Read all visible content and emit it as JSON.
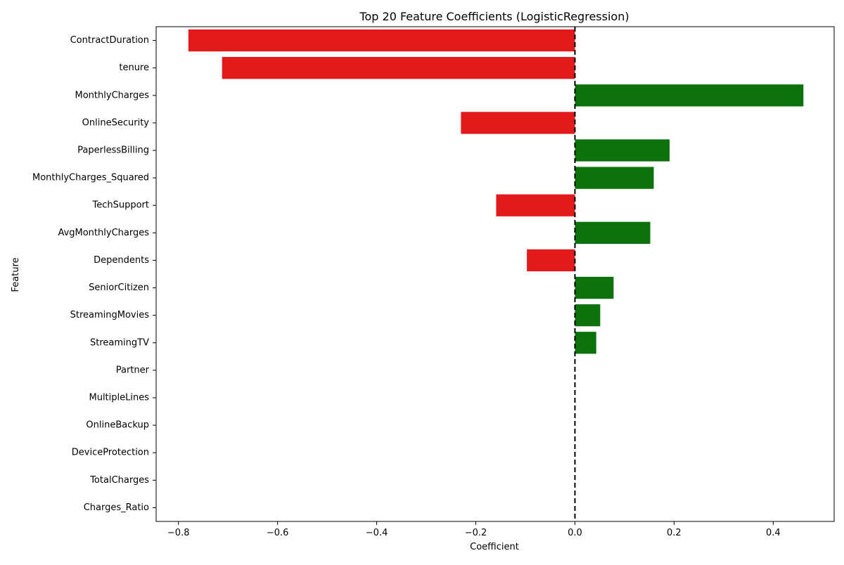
{
  "chart_data": {
    "type": "bar",
    "orientation": "horizontal",
    "title": "Top 20 Feature Coefficients (LogisticRegression)",
    "xlabel": "Coefficient",
    "ylabel": "Feature",
    "categories": [
      "ContractDuration",
      "tenure",
      "MonthlyCharges",
      "OnlineSecurity",
      "PaperlessBilling",
      "MonthlyCharges_Squared",
      "TechSupport",
      "AvgMonthlyCharges",
      "Dependents",
      "SeniorCitizen",
      "StreamingMovies",
      "StreamingTV",
      "Partner",
      "MultipleLines",
      "OnlineBackup",
      "DeviceProtection",
      "TotalCharges",
      "Charges_Ratio"
    ],
    "values": [
      -0.78,
      -0.712,
      0.461,
      -0.23,
      0.191,
      0.159,
      -0.159,
      0.152,
      -0.097,
      0.078,
      0.051,
      0.043,
      0.0,
      0.0,
      0.0,
      0.0,
      0.0,
      0.0
    ],
    "xlim": [
      -0.845,
      0.523
    ],
    "xticks": [
      -0.8,
      -0.6,
      -0.4,
      -0.2,
      0.0,
      0.2,
      0.4
    ],
    "xtick_labels": [
      "−0.8",
      "−0.6",
      "−0.4",
      "−0.2",
      "0.0",
      "0.2",
      "0.4"
    ],
    "reference_line": {
      "x": 0.0,
      "style": "dashed",
      "color": "#000000"
    },
    "colors": {
      "negative": "#e31a1c",
      "positive": "#0c730c"
    },
    "grid": false,
    "legend": "none"
  }
}
